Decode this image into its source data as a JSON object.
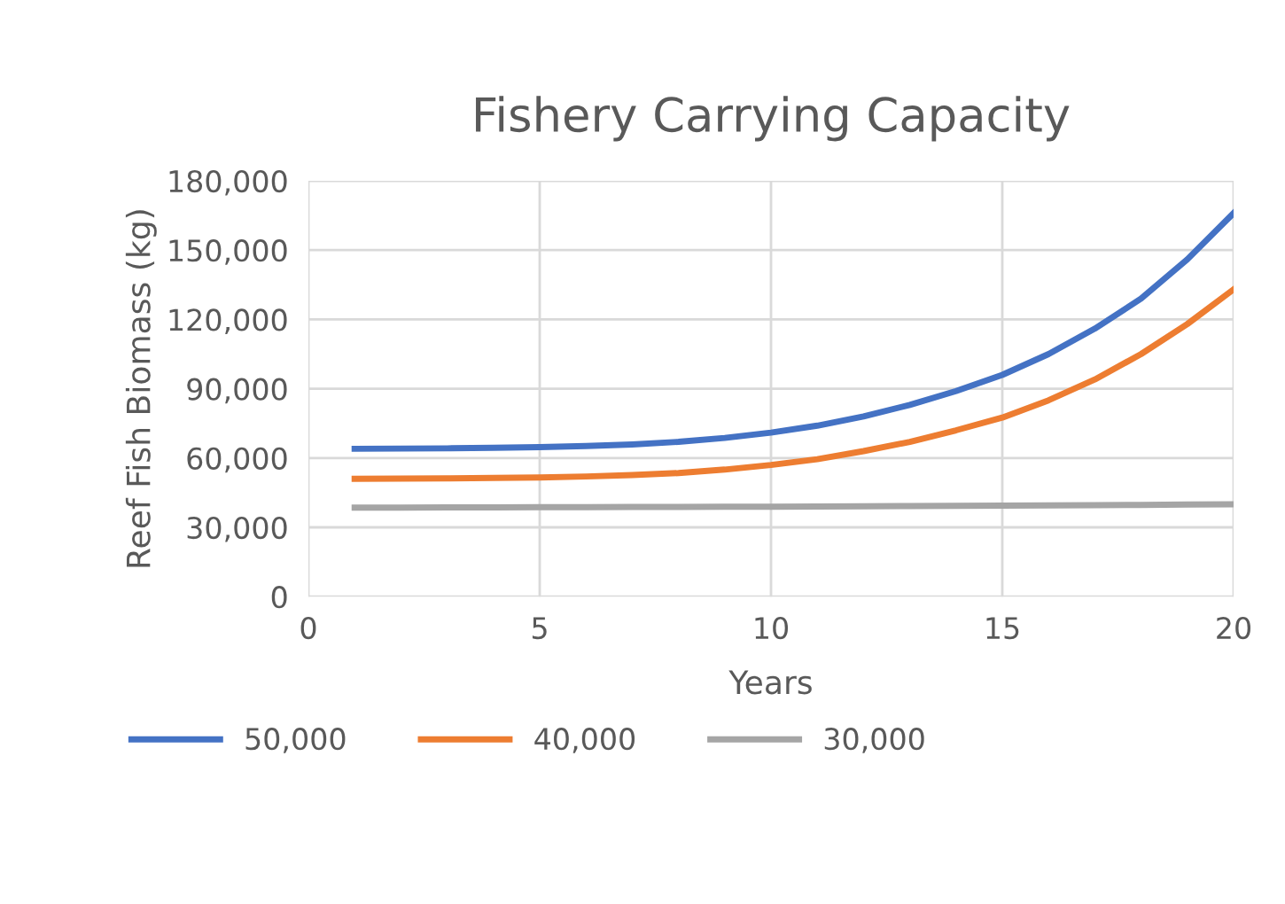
{
  "chart_data": {
    "type": "line",
    "title": "Fishery Carrying Capacity",
    "xlabel": "Years",
    "ylabel": "Reef Fish Biomass (kg)",
    "x": [
      1,
      2,
      3,
      4,
      5,
      6,
      7,
      8,
      9,
      10,
      11,
      12,
      13,
      14,
      15,
      16,
      17,
      18,
      19,
      20
    ],
    "series": [
      {
        "name": "50,000",
        "color": "#4472c4",
        "values": [
          64000,
          64100,
          64200,
          64400,
          64700,
          65200,
          65900,
          67000,
          68700,
          71000,
          74000,
          78000,
          83000,
          89000,
          96000,
          105000,
          116000,
          129000,
          146000,
          166000
        ]
      },
      {
        "name": "40,000",
        "color": "#ed7d31",
        "values": [
          51000,
          51100,
          51200,
          51400,
          51600,
          52000,
          52600,
          53500,
          55000,
          57000,
          59500,
          63000,
          67000,
          72000,
          77500,
          85000,
          94000,
          105000,
          118000,
          133000
        ]
      },
      {
        "name": "30,000",
        "color": "#a5a5a5",
        "values": [
          38500,
          38500,
          38600,
          38600,
          38700,
          38700,
          38800,
          38800,
          38900,
          38900,
          39000,
          39100,
          39200,
          39300,
          39400,
          39500,
          39600,
          39700,
          39900,
          40000
        ]
      }
    ],
    "xlim": [
      0,
      20
    ],
    "xticks": [
      0,
      5,
      10,
      15,
      20
    ],
    "ylim": [
      0,
      180000
    ],
    "yticks": [
      {
        "value": 0,
        "label": "0"
      },
      {
        "value": 30000,
        "label": "30,000"
      },
      {
        "value": 60000,
        "label": "60,000"
      },
      {
        "value": 90000,
        "label": "90,000"
      },
      {
        "value": 120000,
        "label": "120,000"
      },
      {
        "value": 150000,
        "label": "150,000"
      },
      {
        "value": 180000,
        "label": "180,000"
      }
    ],
    "grid": true,
    "legend": "bottom",
    "marker": "none",
    "line_style": "solid"
  }
}
